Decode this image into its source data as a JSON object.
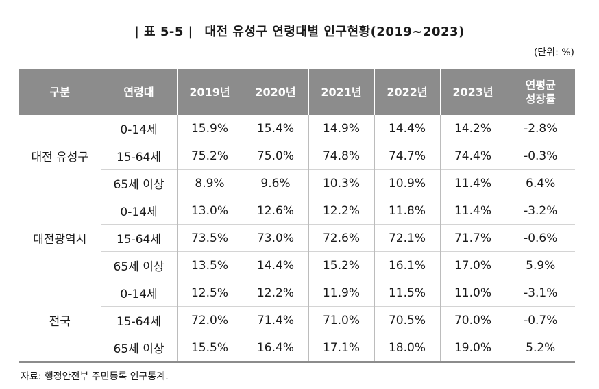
{
  "title": {
    "label": "| 표 5-5 |",
    "text": "대전 유성구 연령대별 인구현황(2019~2023)"
  },
  "unit": "(단위: %)",
  "columns": [
    "구분",
    "연령대",
    "2019년",
    "2020년",
    "2021년",
    "2022년",
    "2023년",
    "연평균\n성장률"
  ],
  "groups": [
    {
      "region": "대전 유성구",
      "rows": [
        {
          "age": "0-14세",
          "values": [
            "15.9%",
            "15.4%",
            "14.9%",
            "14.4%",
            "14.2%",
            "-2.8%"
          ]
        },
        {
          "age": "15-64세",
          "values": [
            "75.2%",
            "75.0%",
            "74.8%",
            "74.7%",
            "74.4%",
            "-0.3%"
          ]
        },
        {
          "age": "65세 이상",
          "values": [
            "8.9%",
            "9.6%",
            "10.3%",
            "10.9%",
            "11.4%",
            "6.4%"
          ]
        }
      ]
    },
    {
      "region": "대전광역시",
      "rows": [
        {
          "age": "0-14세",
          "values": [
            "13.0%",
            "12.6%",
            "12.2%",
            "11.8%",
            "11.4%",
            "-3.2%"
          ]
        },
        {
          "age": "15-64세",
          "values": [
            "73.5%",
            "73.0%",
            "72.6%",
            "72.1%",
            "71.7%",
            "-0.6%"
          ]
        },
        {
          "age": "65세 이상",
          "values": [
            "13.5%",
            "14.4%",
            "15.2%",
            "16.1%",
            "17.0%",
            "5.9%"
          ]
        }
      ]
    },
    {
      "region": "전국",
      "rows": [
        {
          "age": "0-14세",
          "values": [
            "12.5%",
            "12.2%",
            "11.9%",
            "11.5%",
            "11.0%",
            "-3.1%"
          ]
        },
        {
          "age": "15-64세",
          "values": [
            "72.0%",
            "71.4%",
            "71.0%",
            "70.5%",
            "70.0%",
            "-0.7%"
          ]
        },
        {
          "age": "65세 이상",
          "values": [
            "15.5%",
            "16.4%",
            "17.1%",
            "18.0%",
            "19.0%",
            "5.2%"
          ]
        }
      ]
    }
  ],
  "source": "자료: 행정안전부 주민등록 인구통계."
}
